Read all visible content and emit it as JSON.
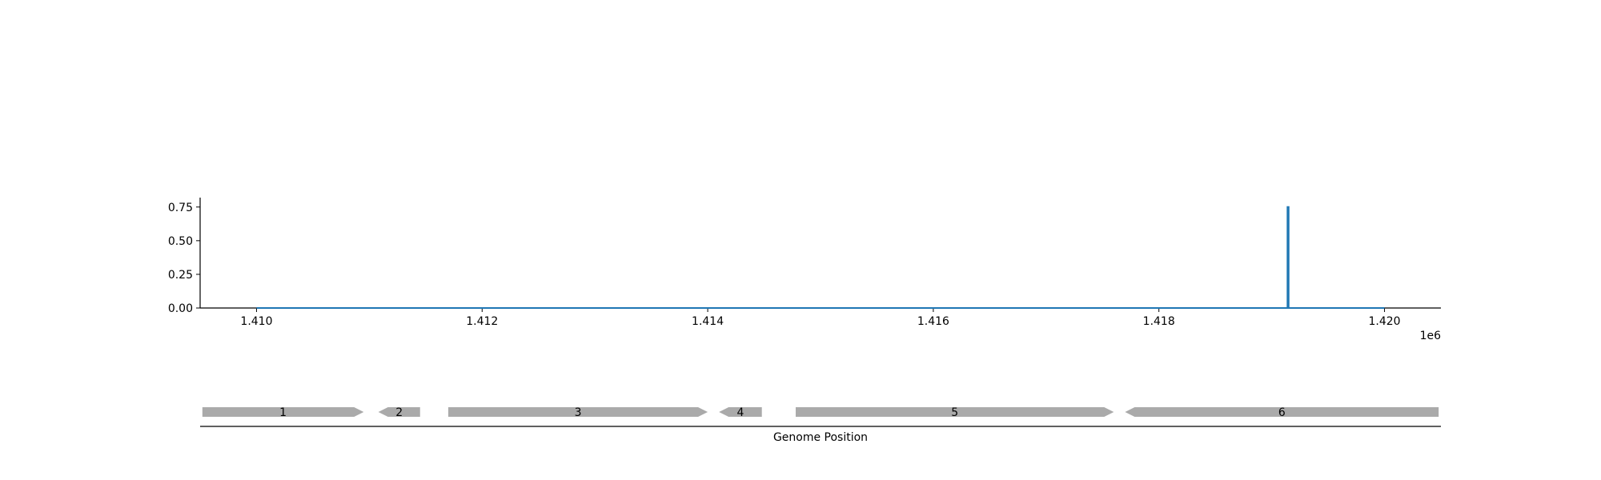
{
  "chart_data": [
    {
      "type": "line",
      "title": "",
      "xlabel": "",
      "ylabel": "",
      "x_offset_label": "1e6",
      "xlim": [
        1409500,
        1420500
      ],
      "ylim": [
        0,
        0.82
      ],
      "x_ticks": [
        1410000,
        1412000,
        1414000,
        1416000,
        1418000,
        1420000
      ],
      "x_tick_labels": [
        "1.410",
        "1.412",
        "1.414",
        "1.416",
        "1.418",
        "1.420"
      ],
      "y_ticks": [
        0,
        0.25,
        0.5,
        0.75
      ],
      "y_tick_labels": [
        "0.00",
        "0.25",
        "0.50",
        "0.75"
      ],
      "series": [
        {
          "color": "#1f77b4",
          "x": [
            1410000,
            1419140,
            1419140,
            1419150,
            1419150,
            1420000
          ],
          "y": [
            0,
            0,
            0.75,
            0.75,
            0,
            0
          ]
        }
      ],
      "grid": false
    },
    {
      "type": "gene-track",
      "xlabel": "Genome Position",
      "xlim": [
        1409500,
        1420500
      ],
      "gene_color": "#aaaaaa",
      "genes": [
        {
          "label": "1",
          "start": 1409520,
          "end": 1410950,
          "strand": "+"
        },
        {
          "label": "2",
          "start": 1411080,
          "end": 1411450,
          "strand": "-"
        },
        {
          "label": "3",
          "start": 1411700,
          "end": 1414000,
          "strand": "+"
        },
        {
          "label": "4",
          "start": 1414100,
          "end": 1414480,
          "strand": "-"
        },
        {
          "label": "5",
          "start": 1414780,
          "end": 1417600,
          "strand": "+"
        },
        {
          "label": "6",
          "start": 1417700,
          "end": 1420480,
          "strand": "-"
        }
      ]
    }
  ]
}
